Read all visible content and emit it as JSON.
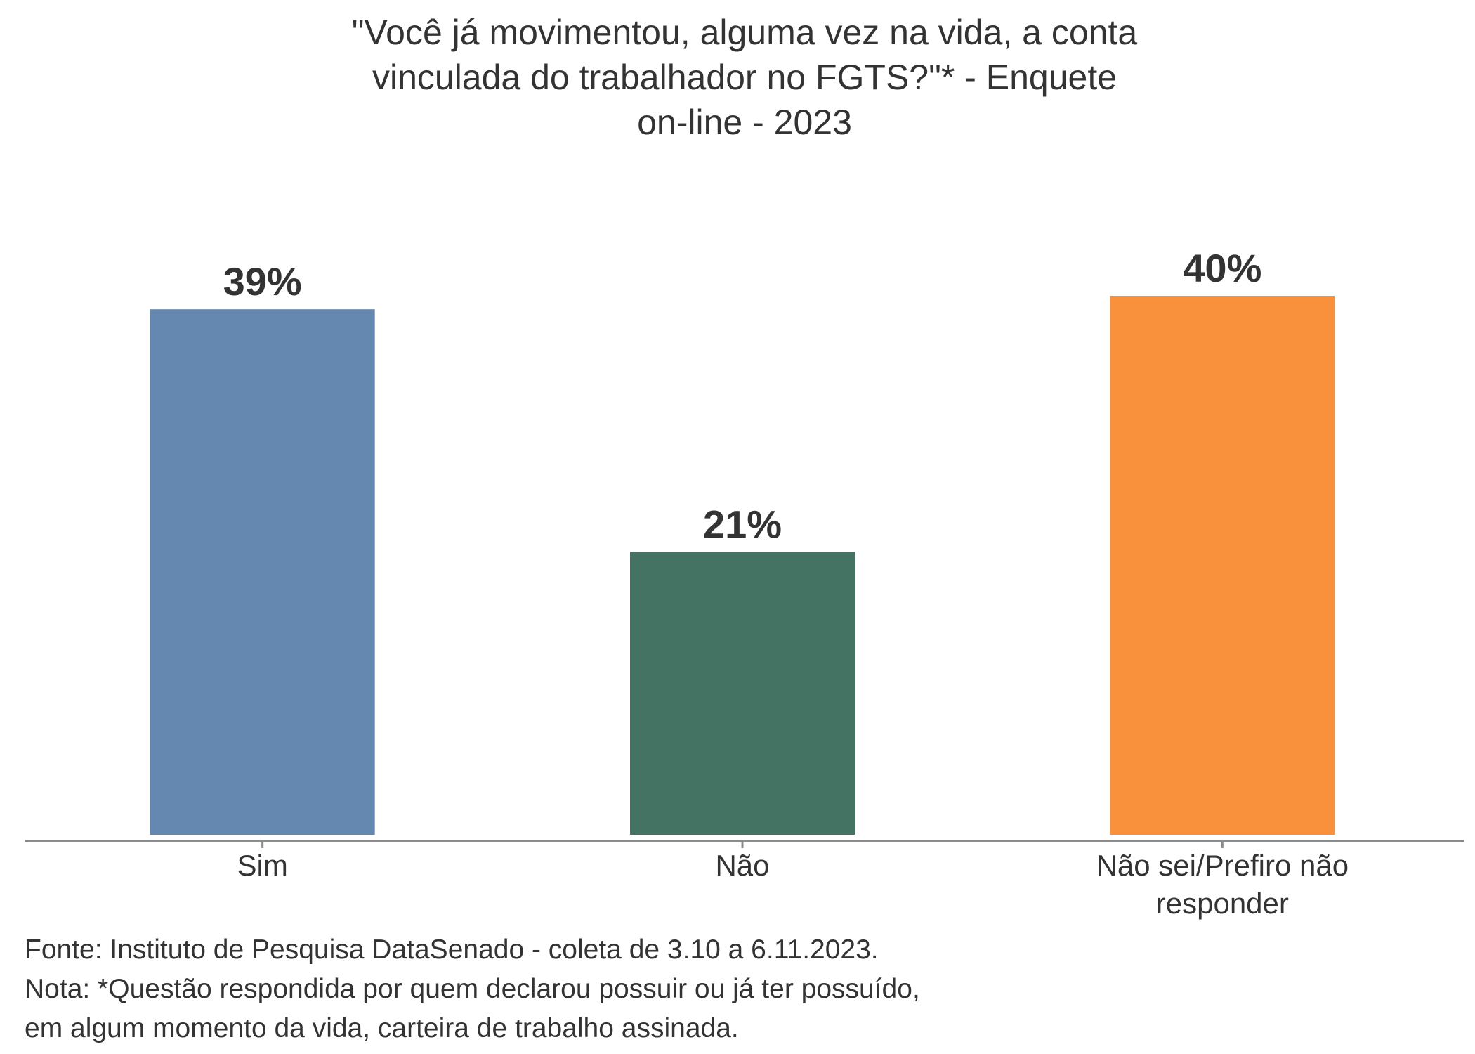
{
  "chart_data": {
    "type": "bar",
    "title_lines": [
      "\"Você já movimentou, alguma vez na vida, a conta",
      "vinculada do trabalhador no FGTS?\"* - Enquete",
      "on-line - 2023"
    ],
    "categories": [
      [
        "Sim"
      ],
      [
        "Não"
      ],
      [
        "Não sei/Prefiro não",
        "responder"
      ]
    ],
    "values": [
      39,
      21,
      40
    ],
    "value_labels": [
      "39%",
      "21%",
      "40%"
    ],
    "colors": [
      "#6588b0",
      "#447363",
      "#f9913c"
    ],
    "ylim": [
      0,
      40
    ],
    "xlabel": "",
    "ylabel": "",
    "grid": false,
    "legend": "none"
  },
  "footer": {
    "source": "Fonte: Instituto de Pesquisa DataSenado - coleta de 3.10 a 6.11.2023.",
    "note_line1": "Nota: *Questão respondida por quem declarou possuir ou já ter possuído,",
    "note_line2": "em algum momento da vida, carteira de trabalho assinada."
  }
}
